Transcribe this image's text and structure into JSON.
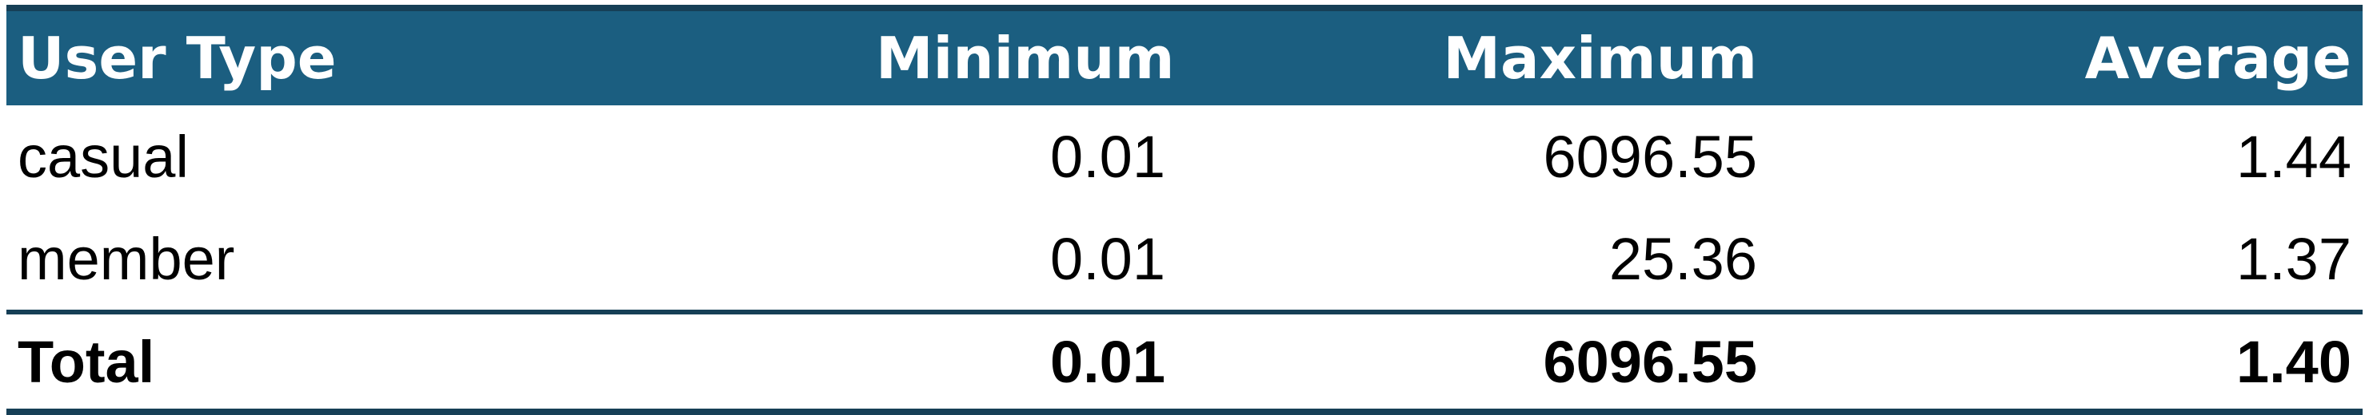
{
  "table": {
    "columns": [
      "User Type",
      "Minimum",
      "Maximum",
      "Average"
    ],
    "rows": [
      [
        "casual",
        "0.01",
        "6096.55",
        "1.44"
      ],
      [
        "member",
        "0.01",
        "25.36",
        "1.37"
      ]
    ],
    "total": [
      "Total",
      "0.01",
      "6096.55",
      "1.40"
    ]
  },
  "colors": {
    "header_background": "#1b5e80",
    "header_text": "#ffffff",
    "rule": "#163f56"
  }
}
